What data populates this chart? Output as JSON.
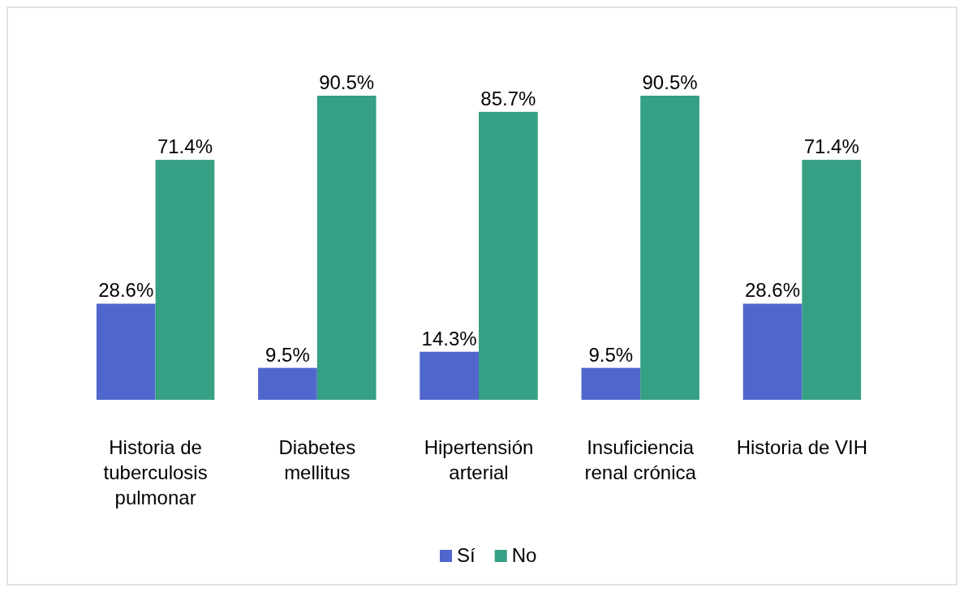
{
  "chart_data": {
    "type": "bar",
    "categories": [
      "Historia de tuberculosis pulmonar",
      "Diabetes mellitus",
      "Hipertensión arterial",
      "Insuficiencia renal crónica",
      "Historia de VIH"
    ],
    "series": [
      {
        "name": "Sí",
        "color": "#4f67cd",
        "values": [
          28.6,
          9.5,
          14.3,
          9.5,
          28.6
        ],
        "value_labels": [
          "28.6%",
          "9.5%",
          "14.3%",
          "9.5%",
          "28.6%"
        ]
      },
      {
        "name": "No",
        "color": "#35a083",
        "values": [
          71.4,
          90.5,
          85.7,
          90.5,
          71.4
        ],
        "value_labels": [
          "71.4%",
          "90.5%",
          "85.7%",
          "90.5%",
          "71.4%"
        ]
      }
    ],
    "legend": "bottom"
  }
}
